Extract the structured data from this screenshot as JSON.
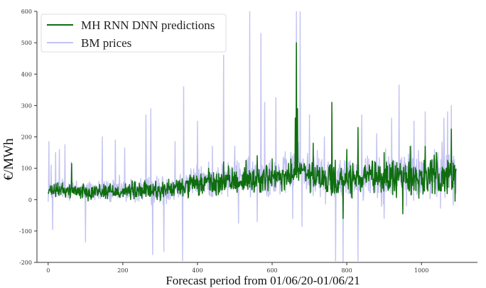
{
  "chart_data": {
    "type": "line",
    "title": "",
    "xlabel": "Forecast period from 01/06/20-01/06/21",
    "ylabel": "€/MWh",
    "xlim": [
      -30,
      1150
    ],
    "ylim": [
      -200,
      600
    ],
    "x_ticks": [
      0,
      200,
      400,
      600,
      800,
      1000
    ],
    "y_ticks": [
      -200,
      -100,
      0,
      100,
      200,
      300,
      400,
      500,
      600
    ],
    "grid": false,
    "legend_location": "top-left",
    "series": [
      {
        "name": "BM prices",
        "color": "#c3c3f2",
        "anchors": [
          [
            0,
            20
          ],
          [
            25,
            35
          ],
          [
            50,
            35
          ],
          [
            75,
            30
          ],
          [
            100,
            30
          ],
          [
            150,
            28
          ],
          [
            200,
            28
          ],
          [
            250,
            30
          ],
          [
            300,
            30
          ],
          [
            340,
            40
          ],
          [
            380,
            55
          ],
          [
            420,
            60
          ],
          [
            460,
            60
          ],
          [
            500,
            70
          ],
          [
            540,
            70
          ],
          [
            580,
            80
          ],
          [
            620,
            75
          ],
          [
            650,
            85
          ],
          [
            670,
            120
          ],
          [
            690,
            90
          ],
          [
            720,
            75
          ],
          [
            760,
            70
          ],
          [
            800,
            70
          ],
          [
            840,
            75
          ],
          [
            880,
            75
          ],
          [
            920,
            80
          ],
          [
            960,
            85
          ],
          [
            1000,
            75
          ],
          [
            1040,
            80
          ],
          [
            1070,
            95
          ],
          [
            1090,
            90
          ]
        ],
        "noise": 32,
        "spikes": [
          [
            2,
            185
          ],
          [
            8,
            110
          ],
          [
            12,
            -95
          ],
          [
            20,
            150
          ],
          [
            30,
            160
          ],
          [
            45,
            175
          ],
          [
            62,
            120
          ],
          [
            100,
            -135
          ],
          [
            145,
            200
          ],
          [
            180,
            190
          ],
          [
            205,
            165
          ],
          [
            262,
            270
          ],
          [
            275,
            290
          ],
          [
            280,
            -175
          ],
          [
            310,
            -165
          ],
          [
            340,
            185
          ],
          [
            360,
            -195
          ],
          [
            363,
            360
          ],
          [
            400,
            250
          ],
          [
            440,
            170
          ],
          [
            470,
            460
          ],
          [
            500,
            170
          ],
          [
            510,
            -75
          ],
          [
            540,
            600
          ],
          [
            560,
            -70
          ],
          [
            570,
            530
          ],
          [
            580,
            310
          ],
          [
            610,
            325
          ],
          [
            655,
            -60
          ],
          [
            665,
            600
          ],
          [
            675,
            600
          ],
          [
            680,
            -85
          ],
          [
            700,
            270
          ],
          [
            740,
            200
          ],
          [
            770,
            -195
          ],
          [
            790,
            -200
          ],
          [
            830,
            -195
          ],
          [
            840,
            270
          ],
          [
            880,
            210
          ],
          [
            900,
            -60
          ],
          [
            920,
            260
          ],
          [
            940,
            365
          ],
          [
            960,
            -20
          ],
          [
            980,
            250
          ],
          [
            1010,
            280
          ],
          [
            1060,
            260
          ],
          [
            1070,
            280
          ],
          [
            1080,
            300
          ]
        ]
      },
      {
        "name": "MH RNN DNN predictions",
        "color": "#0e6e0e",
        "anchors": [
          [
            0,
            25
          ],
          [
            25,
            30
          ],
          [
            50,
            30
          ],
          [
            75,
            28
          ],
          [
            100,
            27
          ],
          [
            150,
            27
          ],
          [
            200,
            27
          ],
          [
            250,
            28
          ],
          [
            300,
            30
          ],
          [
            340,
            35
          ],
          [
            380,
            45
          ],
          [
            420,
            50
          ],
          [
            460,
            52
          ],
          [
            500,
            60
          ],
          [
            540,
            60
          ],
          [
            580,
            70
          ],
          [
            620,
            65
          ],
          [
            650,
            75
          ],
          [
            670,
            100
          ],
          [
            690,
            80
          ],
          [
            720,
            65
          ],
          [
            760,
            60
          ],
          [
            800,
            60
          ],
          [
            840,
            65
          ],
          [
            880,
            65
          ],
          [
            920,
            70
          ],
          [
            960,
            75
          ],
          [
            1000,
            65
          ],
          [
            1040,
            70
          ],
          [
            1070,
            80
          ],
          [
            1090,
            75
          ]
        ],
        "noise": 22,
        "spikes": [
          [
            63,
            115
          ],
          [
            430,
            100
          ],
          [
            470,
            120
          ],
          [
            530,
            125
          ],
          [
            560,
            140
          ],
          [
            600,
            130
          ],
          [
            650,
            130
          ],
          [
            662,
            260
          ],
          [
            665,
            500
          ],
          [
            668,
            290
          ],
          [
            710,
            180
          ],
          [
            760,
            310
          ],
          [
            790,
            -60
          ],
          [
            800,
            160
          ],
          [
            830,
            230
          ],
          [
            860,
            110
          ],
          [
            900,
            150
          ],
          [
            950,
            -45
          ],
          [
            970,
            170
          ],
          [
            1010,
            170
          ],
          [
            1040,
            150
          ],
          [
            1080,
            225
          ],
          [
            1090,
            -5
          ]
        ]
      }
    ]
  }
}
